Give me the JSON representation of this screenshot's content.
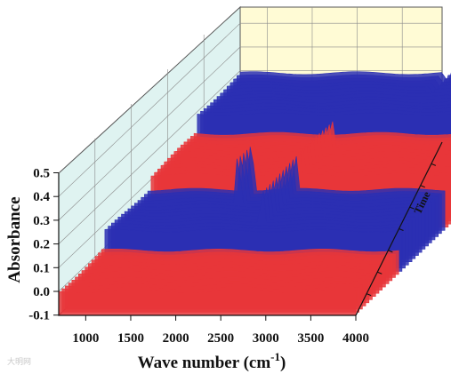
{
  "chart_data": {
    "type": "3d-waterfall",
    "x_axis": {
      "label_main": "Wave number (cm",
      "label_sup": "-1",
      "label_tail": ")",
      "range": [
        700,
        4000
      ],
      "ticks": [
        1000,
        1500,
        2000,
        2500,
        3000,
        3500,
        4000
      ]
    },
    "y_axis": {
      "label": "Absorbance",
      "range": [
        -0.1,
        0.5
      ],
      "ticks": [
        -0.1,
        0.0,
        0.1,
        0.2,
        0.3,
        0.4,
        0.5
      ],
      "tick_labels": [
        "-0.1",
        "0.0",
        "0.1",
        "0.2",
        "0.3",
        "0.4",
        "0.5"
      ]
    },
    "depth_axis": {
      "label": "Time"
    },
    "bands": [
      {
        "color": "#e8363a",
        "baseline": 0.0
      },
      {
        "color": "#2b2fb3",
        "baseline": 0.07
      },
      {
        "color": "#e8363a",
        "baseline": 0.12
      },
      {
        "color": "#2b2fb3",
        "baseline": 0.19
      }
    ],
    "features": [
      {
        "wavenumber": 1850,
        "absorbance": 0.35,
        "note": "sharp peak"
      },
      {
        "wavenumber": 2340,
        "absorbance": 0.25,
        "note": "dip"
      },
      {
        "wavenumber": 3000,
        "absorbance": 0.13,
        "note": "tall spike (back)"
      }
    ],
    "colors": {
      "red": "#e8363a",
      "blue": "#2b2fb3",
      "left_wall": "#dff3f1",
      "back_wall": "#fffbd5",
      "grid": "#8a8a8a"
    }
  },
  "watermark": "大明网"
}
